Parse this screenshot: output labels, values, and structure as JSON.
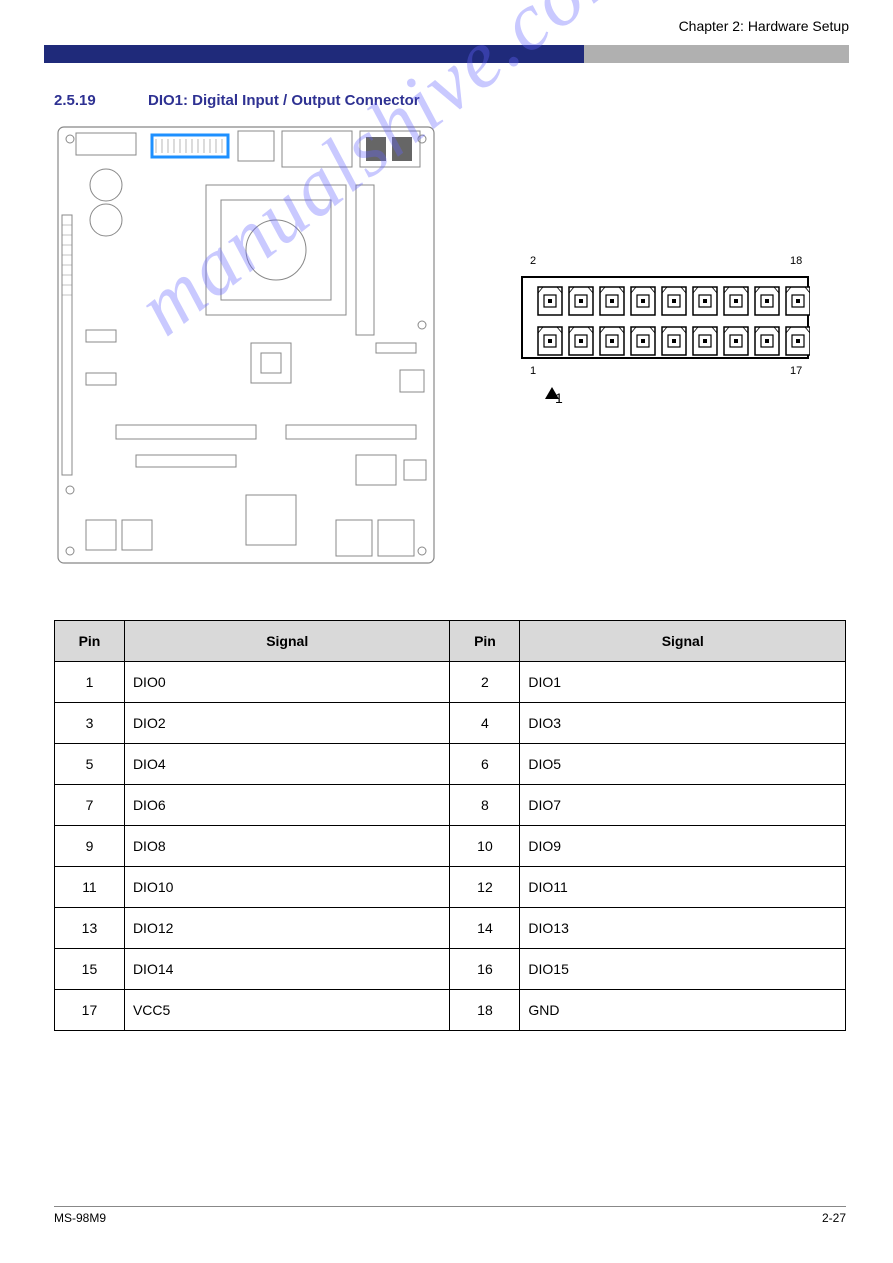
{
  "header": {
    "chapter": "Chapter 2: Hardware Setup",
    "bar_blue": "#1f2a7a",
    "bar_grey": "#b0b0b0"
  },
  "section": {
    "number": "2.5.19",
    "title": "DIO1: Digital Input / Output Connector"
  },
  "connector": {
    "pin_top_left": "2",
    "pin_top_right": "18",
    "pin_bottom_left": "1",
    "pin_bottom_right": "17",
    "flag_label": "1"
  },
  "table": {
    "headers": [
      "Pin",
      "Signal",
      "Pin",
      "Signal"
    ],
    "rows": [
      [
        "1",
        "DIO0",
        "2",
        "DIO1"
      ],
      [
        "3",
        "DIO2",
        "4",
        "DIO3"
      ],
      [
        "5",
        "DIO4",
        "6",
        "DIO5"
      ],
      [
        "7",
        "DIO6",
        "8",
        "DIO7"
      ],
      [
        "9",
        "DIO8",
        "10",
        "DIO9"
      ],
      [
        "11",
        "DIO10",
        "12",
        "DIO11"
      ],
      [
        "13",
        "DIO12",
        "14",
        "DIO13"
      ],
      [
        "15",
        "DIO14",
        "16",
        "DIO15"
      ],
      [
        "17",
        "VCC5",
        "18",
        "GND"
      ]
    ]
  },
  "watermark": "manualshive.com",
  "footer": {
    "left": "MS-98M9",
    "right": "2-27"
  },
  "board_highlight": {
    "color": "#1e90ff"
  }
}
